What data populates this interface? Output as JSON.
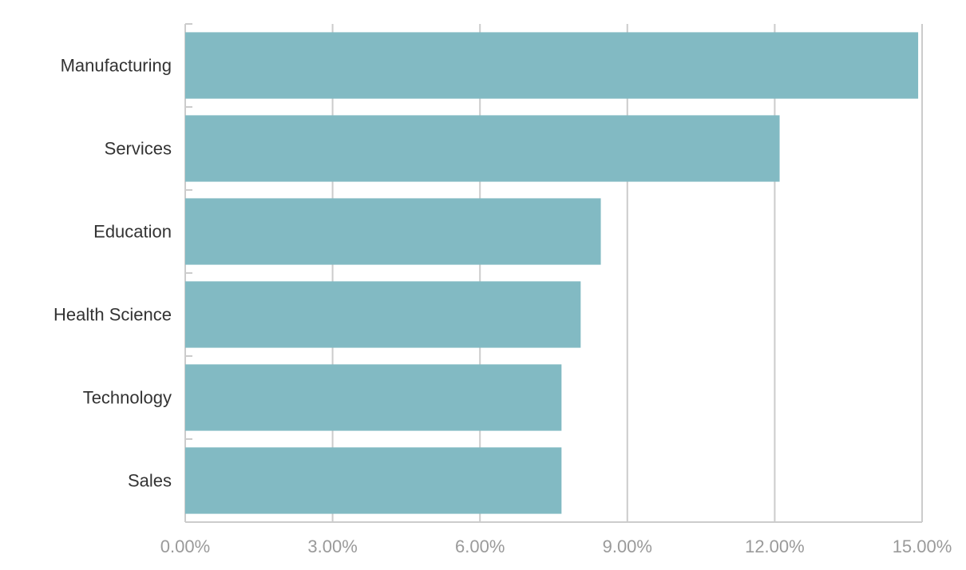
{
  "chart_data": {
    "type": "bar",
    "orientation": "horizontal",
    "categories": [
      "Manufacturing",
      "Services",
      "Education",
      "Health Science",
      "Technology",
      "Sales"
    ],
    "values": [
      14.92,
      12.1,
      8.46,
      8.05,
      7.66,
      7.66
    ],
    "value_unit": "%",
    "xlim": [
      0,
      15
    ],
    "x_ticks": [
      0,
      3,
      6,
      9,
      12,
      15
    ],
    "x_tick_labels": [
      "0.00%",
      "3.00%",
      "6.00%",
      "9.00%",
      "12.00%",
      "15.00%"
    ],
    "grid": "vertical",
    "legend": "none",
    "bar_color": "#82bac3",
    "grid_color": "#cccccc",
    "tick_label_color": "#9a9a9a",
    "category_label_color": "#333333"
  }
}
